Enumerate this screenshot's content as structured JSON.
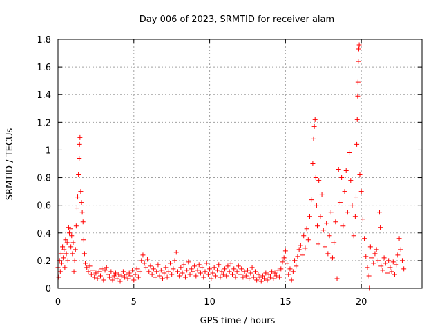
{
  "chart_data": {
    "type": "scatter",
    "title": "Day 006 of 2023, SRMTID for receiver alam",
    "xlabel": "GPS time / hours",
    "ylabel": "SRMTID / TECUs",
    "xlim": [
      0,
      24
    ],
    "ylim": [
      0,
      1.8
    ],
    "xticks": [
      0,
      5,
      10,
      15,
      20
    ],
    "xtick_labels": [
      "0",
      "5",
      "10",
      "15",
      "20"
    ],
    "yticks": [
      0,
      0.2,
      0.4,
      0.6,
      0.8,
      1,
      1.2,
      1.4,
      1.6,
      1.8
    ],
    "ytick_labels": [
      "0",
      "0.2",
      "0.4",
      "0.6",
      "0.8",
      "1",
      "1.2",
      "1.4",
      "1.6",
      "1.8"
    ],
    "grid": true,
    "marker": "+",
    "color": "#ff0000",
    "series": [
      {
        "name": "SRMTID",
        "points": [
          [
            0.0,
            0.15
          ],
          [
            0.05,
            0.08
          ],
          [
            0.1,
            0.2
          ],
          [
            0.15,
            0.12
          ],
          [
            0.2,
            0.25
          ],
          [
            0.25,
            0.18
          ],
          [
            0.3,
            0.3
          ],
          [
            0.35,
            0.22
          ],
          [
            0.4,
            0.28
          ],
          [
            0.45,
            0.15
          ],
          [
            0.5,
            0.35
          ],
          [
            0.55,
            0.25
          ],
          [
            0.6,
            0.33
          ],
          [
            0.65,
            0.2
          ],
          [
            0.7,
            0.44
          ],
          [
            0.75,
            0.4
          ],
          [
            0.8,
            0.43
          ],
          [
            0.85,
            0.3
          ],
          [
            0.9,
            0.38
          ],
          [
            0.95,
            0.25
          ],
          [
            1.0,
            0.33
          ],
          [
            1.05,
            0.12
          ],
          [
            1.1,
            0.2
          ],
          [
            1.15,
            0.28
          ],
          [
            1.2,
            0.45
          ],
          [
            1.25,
            0.58
          ],
          [
            1.3,
            0.66
          ],
          [
            1.35,
            0.82
          ],
          [
            1.4,
            0.94
          ],
          [
            1.42,
            1.04
          ],
          [
            1.45,
            1.09
          ],
          [
            1.5,
            0.7
          ],
          [
            1.55,
            0.62
          ],
          [
            1.6,
            0.55
          ],
          [
            1.65,
            0.48
          ],
          [
            1.7,
            0.35
          ],
          [
            1.75,
            0.25
          ],
          [
            1.8,
            0.18
          ],
          [
            1.9,
            0.15
          ],
          [
            2.0,
            0.12
          ],
          [
            2.1,
            0.16
          ],
          [
            2.2,
            0.1
          ],
          [
            2.3,
            0.13
          ],
          [
            2.4,
            0.08
          ],
          [
            2.5,
            0.11
          ],
          [
            2.6,
            0.07
          ],
          [
            2.7,
            0.12
          ],
          [
            2.8,
            0.09
          ],
          [
            2.9,
            0.14
          ],
          [
            3.0,
            0.06
          ],
          [
            3.1,
            0.13
          ],
          [
            3.2,
            0.15
          ],
          [
            3.3,
            0.1
          ],
          [
            3.4,
            0.08
          ],
          [
            3.5,
            0.12
          ],
          [
            3.6,
            0.06
          ],
          [
            3.7,
            0.09
          ],
          [
            3.8,
            0.11
          ],
          [
            3.9,
            0.07
          ],
          [
            4.0,
            0.1
          ],
          [
            4.1,
            0.05
          ],
          [
            4.2,
            0.09
          ],
          [
            4.3,
            0.12
          ],
          [
            4.4,
            0.08
          ],
          [
            4.5,
            0.1
          ],
          [
            4.6,
            0.07
          ],
          [
            4.7,
            0.11
          ],
          [
            4.8,
            0.09
          ],
          [
            4.9,
            0.13
          ],
          [
            5.0,
            0.06
          ],
          [
            5.1,
            0.1
          ],
          [
            5.2,
            0.14
          ],
          [
            5.3,
            0.08
          ],
          [
            5.4,
            0.12
          ],
          [
            5.5,
            0.2
          ],
          [
            5.6,
            0.24
          ],
          [
            5.7,
            0.18
          ],
          [
            5.8,
            0.15
          ],
          [
            5.9,
            0.21
          ],
          [
            6.0,
            0.12
          ],
          [
            6.1,
            0.16
          ],
          [
            6.2,
            0.1
          ],
          [
            6.3,
            0.14
          ],
          [
            6.4,
            0.08
          ],
          [
            6.5,
            0.12
          ],
          [
            6.6,
            0.17
          ],
          [
            6.7,
            0.09
          ],
          [
            6.8,
            0.13
          ],
          [
            6.9,
            0.07
          ],
          [
            7.0,
            0.11
          ],
          [
            7.1,
            0.15
          ],
          [
            7.2,
            0.08
          ],
          [
            7.3,
            0.12
          ],
          [
            7.4,
            0.18
          ],
          [
            7.5,
            0.1
          ],
          [
            7.6,
            0.14
          ],
          [
            7.7,
            0.2
          ],
          [
            7.8,
            0.26
          ],
          [
            7.9,
            0.12
          ],
          [
            8.0,
            0.09
          ],
          [
            8.1,
            0.15
          ],
          [
            8.2,
            0.11
          ],
          [
            8.3,
            0.17
          ],
          [
            8.4,
            0.08
          ],
          [
            8.5,
            0.13
          ],
          [
            8.6,
            0.19
          ],
          [
            8.7,
            0.1
          ],
          [
            8.8,
            0.14
          ],
          [
            8.9,
            0.12
          ],
          [
            9.0,
            0.16
          ],
          [
            9.1,
            0.09
          ],
          [
            9.2,
            0.13
          ],
          [
            9.3,
            0.17
          ],
          [
            9.4,
            0.11
          ],
          [
            9.5,
            0.15
          ],
          [
            9.6,
            0.08
          ],
          [
            9.7,
            0.12
          ],
          [
            9.8,
            0.18
          ],
          [
            9.9,
            0.1
          ],
          [
            10.0,
            0.14
          ],
          [
            10.1,
            0.07
          ],
          [
            10.2,
            0.11
          ],
          [
            10.3,
            0.15
          ],
          [
            10.4,
            0.09
          ],
          [
            10.5,
            0.13
          ],
          [
            10.6,
            0.17
          ],
          [
            10.7,
            0.08
          ],
          [
            10.8,
            0.12
          ],
          [
            10.9,
            0.1
          ],
          [
            11.0,
            0.14
          ],
          [
            11.1,
            0.09
          ],
          [
            11.2,
            0.16
          ],
          [
            11.3,
            0.12
          ],
          [
            11.4,
            0.18
          ],
          [
            11.5,
            0.1
          ],
          [
            11.6,
            0.14
          ],
          [
            11.7,
            0.08
          ],
          [
            11.8,
            0.12
          ],
          [
            11.9,
            0.16
          ],
          [
            12.0,
            0.1
          ],
          [
            12.1,
            0.14
          ],
          [
            12.2,
            0.08
          ],
          [
            12.3,
            0.12
          ],
          [
            12.4,
            0.09
          ],
          [
            12.5,
            0.13
          ],
          [
            12.6,
            0.07
          ],
          [
            12.7,
            0.11
          ],
          [
            12.8,
            0.15
          ],
          [
            12.9,
            0.08
          ],
          [
            13.0,
            0.12
          ],
          [
            13.1,
            0.06
          ],
          [
            13.2,
            0.1
          ],
          [
            13.3,
            0.08
          ],
          [
            13.4,
            0.05
          ],
          [
            13.5,
            0.09
          ],
          [
            13.6,
            0.07
          ],
          [
            13.7,
            0.11
          ],
          [
            13.8,
            0.06
          ],
          [
            13.9,
            0.1
          ],
          [
            14.0,
            0.08
          ],
          [
            14.1,
            0.12
          ],
          [
            14.2,
            0.07
          ],
          [
            14.3,
            0.11
          ],
          [
            14.4,
            0.09
          ],
          [
            14.5,
            0.13
          ],
          [
            14.6,
            0.08
          ],
          [
            14.7,
            0.14
          ],
          [
            14.8,
            0.19
          ],
          [
            14.9,
            0.22
          ],
          [
            15.0,
            0.27
          ],
          [
            15.1,
            0.18
          ],
          [
            15.2,
            0.1
          ],
          [
            15.3,
            0.14
          ],
          [
            15.4,
            0.06
          ],
          [
            15.5,
            0.12
          ],
          [
            15.6,
            0.2
          ],
          [
            15.7,
            0.16
          ],
          [
            15.8,
            0.23
          ],
          [
            15.9,
            0.28
          ],
          [
            16.0,
            0.31
          ],
          [
            16.1,
            0.24
          ],
          [
            16.2,
            0.38
          ],
          [
            16.3,
            0.29
          ],
          [
            16.4,
            0.43
          ],
          [
            16.5,
            0.35
          ],
          [
            16.6,
            0.52
          ],
          [
            16.7,
            0.64
          ],
          [
            16.8,
            0.9
          ],
          [
            16.85,
            1.08
          ],
          [
            16.9,
            1.17
          ],
          [
            16.95,
            1.22
          ],
          [
            17.0,
            0.8
          ],
          [
            17.05,
            0.6
          ],
          [
            17.1,
            0.45
          ],
          [
            17.15,
            0.32
          ],
          [
            17.2,
            0.78
          ],
          [
            17.3,
            0.52
          ],
          [
            17.4,
            0.68
          ],
          [
            17.5,
            0.42
          ],
          [
            17.6,
            0.3
          ],
          [
            17.7,
            0.47
          ],
          [
            17.8,
            0.25
          ],
          [
            17.9,
            0.38
          ],
          [
            18.0,
            0.55
          ],
          [
            18.1,
            0.22
          ],
          [
            18.2,
            0.33
          ],
          [
            18.3,
            0.48
          ],
          [
            18.4,
            0.07
          ],
          [
            18.5,
            0.86
          ],
          [
            18.6,
            0.62
          ],
          [
            18.7,
            0.8
          ],
          [
            18.8,
            0.45
          ],
          [
            18.9,
            0.7
          ],
          [
            19.0,
            0.85
          ],
          [
            19.1,
            0.55
          ],
          [
            19.2,
            0.98
          ],
          [
            19.3,
            0.78
          ],
          [
            19.4,
            0.6
          ],
          [
            19.5,
            0.38
          ],
          [
            19.6,
            0.52
          ],
          [
            19.65,
            0.66
          ],
          [
            19.7,
            1.04
          ],
          [
            19.73,
            1.22
          ],
          [
            19.76,
            1.39
          ],
          [
            19.78,
            1.49
          ],
          [
            19.8,
            1.64
          ],
          [
            19.83,
            1.73
          ],
          [
            19.86,
            1.76
          ],
          [
            19.9,
            0.82
          ],
          [
            20.0,
            0.7
          ],
          [
            20.1,
            0.5
          ],
          [
            20.2,
            0.36
          ],
          [
            20.3,
            0.23
          ],
          [
            20.4,
            0.15
          ],
          [
            20.5,
            0.09
          ],
          [
            20.55,
            0.0
          ],
          [
            20.6,
            0.3
          ],
          [
            20.7,
            0.22
          ],
          [
            20.8,
            0.18
          ],
          [
            20.9,
            0.25
          ],
          [
            21.0,
            0.28
          ],
          [
            21.1,
            0.2
          ],
          [
            21.2,
            0.55
          ],
          [
            21.25,
            0.44
          ],
          [
            21.3,
            0.16
          ],
          [
            21.4,
            0.13
          ],
          [
            21.5,
            0.22
          ],
          [
            21.6,
            0.18
          ],
          [
            21.7,
            0.11
          ],
          [
            21.8,
            0.2
          ],
          [
            21.9,
            0.15
          ],
          [
            22.0,
            0.12
          ],
          [
            22.1,
            0.19
          ],
          [
            22.2,
            0.1
          ],
          [
            22.3,
            0.17
          ],
          [
            22.4,
            0.24
          ],
          [
            22.5,
            0.36
          ],
          [
            22.6,
            0.28
          ],
          [
            22.7,
            0.2
          ],
          [
            22.8,
            0.14
          ]
        ]
      }
    ]
  }
}
